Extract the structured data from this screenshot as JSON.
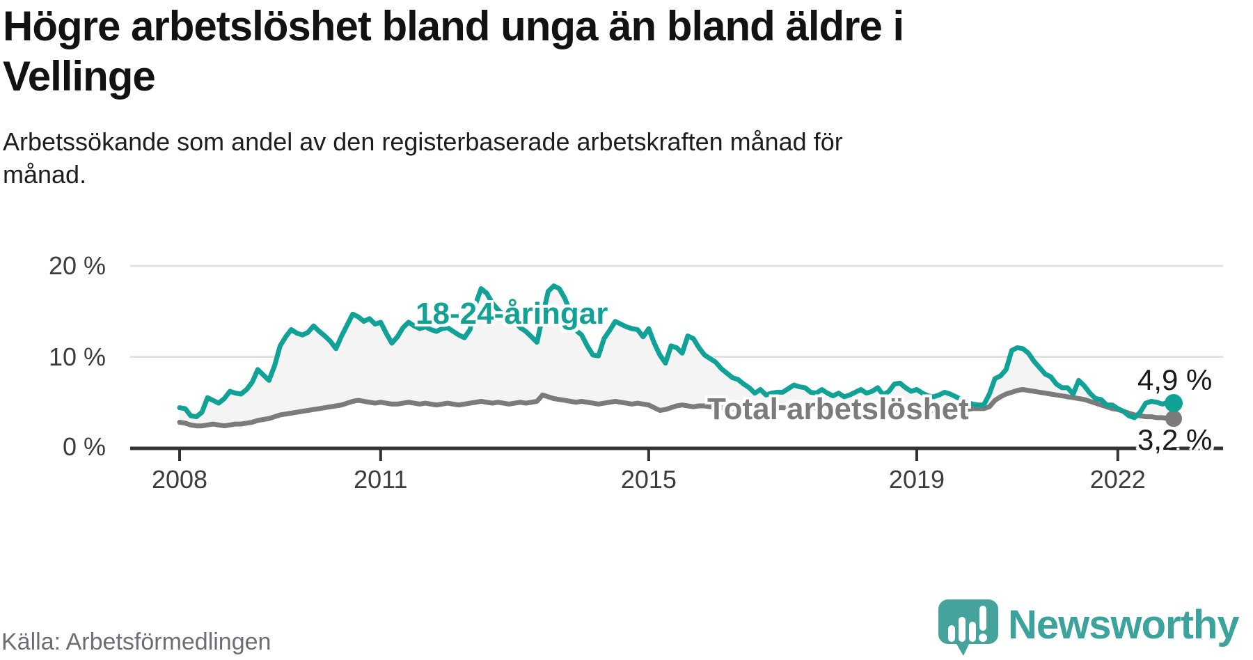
{
  "chart_data": {
    "type": "line",
    "title": "Högre arbetslöshet bland unga än bland äldre i Vellinge",
    "title_lines": [
      "Högre arbetslöshet bland unga än bland äldre i",
      "Vellinge"
    ],
    "subtitle": "Arbetssökande som andel av den registerbaserade arbetskraften månad för månad.",
    "subtitle_lines": [
      "Arbetssökande som andel av den registerbaserade arbetskraften månad för",
      "månad."
    ],
    "x_unit": "month",
    "x_start": "2008-01",
    "x_end": "2022-11",
    "x_axis": {
      "ticks": [
        {
          "label": "2008",
          "year": 2008
        },
        {
          "label": "2011",
          "year": 2011
        },
        {
          "label": "2015",
          "year": 2015
        },
        {
          "label": "2019",
          "year": 2019
        },
        {
          "label": "2022",
          "year": 2022
        }
      ]
    },
    "y_axis": {
      "unit": "%",
      "ticks": [
        {
          "label": "0 %",
          "value": 0
        },
        {
          "label": "10 %",
          "value": 10
        },
        {
          "label": "20 %",
          "value": 20
        }
      ],
      "ylim": [
        0,
        22
      ]
    },
    "band_fill_between_series": true,
    "colors": {
      "youth": "#10a296",
      "total": "#7b7b7b",
      "band": "#f4f4f4",
      "gridline": "#e2e2e2",
      "axis": "#333333"
    },
    "series": [
      {
        "name": "18-24-åringar",
        "label": "18-24-åringar",
        "end_label": "4,9 %",
        "end_value": 4.9,
        "color": "#10a296",
        "values": [
          4.4,
          4.3,
          3.5,
          3.4,
          3.9,
          5.5,
          5.2,
          4.9,
          5.4,
          6.2,
          6.0,
          5.9,
          6.4,
          7.2,
          8.6,
          8.0,
          7.4,
          9.0,
          11.2,
          12.2,
          13.0,
          12.6,
          12.4,
          12.7,
          13.4,
          12.8,
          12.3,
          11.7,
          10.9,
          12.3,
          13.5,
          14.7,
          14.4,
          13.9,
          14.2,
          13.6,
          13.8,
          12.6,
          11.5,
          12.2,
          13.2,
          13.8,
          13.4,
          13.1,
          13.3,
          13.0,
          12.8,
          13.1,
          13.2,
          12.8,
          12.4,
          12.1,
          13.0,
          15.8,
          17.5,
          17.0,
          15.9,
          15.2,
          14.6,
          14.0,
          13.9,
          13.2,
          12.8,
          12.2,
          11.6,
          14.5,
          17.2,
          17.8,
          17.5,
          16.4,
          14.8,
          12.9,
          12.4,
          11.2,
          10.2,
          10.1,
          12.0,
          12.9,
          13.9,
          13.6,
          13.3,
          13.1,
          13.0,
          12.2,
          13.1,
          11.5,
          10.2,
          9.3,
          11.2,
          11.0,
          10.4,
          12.3,
          12.0,
          11.0,
          10.2,
          9.8,
          9.4,
          8.7,
          8.2,
          7.7,
          7.5,
          7.0,
          6.6,
          6.0,
          6.4,
          5.8,
          6.0,
          6.1,
          6.1,
          6.5,
          6.9,
          6.7,
          6.6,
          6.1,
          6.0,
          6.4,
          6.0,
          5.7,
          6.0,
          5.6,
          5.8,
          6.1,
          6.4,
          6.0,
          6.2,
          6.6,
          5.8,
          6.2,
          7.0,
          7.1,
          6.6,
          6.2,
          6.4,
          6.0,
          5.7,
          5.6,
          5.8,
          6.1,
          5.9,
          5.6,
          5.3,
          5.0,
          4.8,
          4.7,
          4.7,
          5.9,
          7.6,
          7.9,
          8.6,
          10.7,
          11.0,
          10.9,
          10.4,
          9.5,
          8.8,
          8.1,
          7.8,
          7.0,
          6.6,
          6.6,
          5.9,
          7.4,
          6.8,
          6.0,
          5.4,
          5.3,
          4.7,
          4.7,
          4.3,
          4.0,
          3.5,
          3.3,
          3.9,
          4.9,
          5.1,
          5.0,
          4.8,
          5.0,
          4.9
        ]
      },
      {
        "name": "Total arbetslöshet",
        "label": "Total arbetslöshet",
        "end_label": "3,2 %",
        "end_value": 3.2,
        "color": "#7b7b7b",
        "values": [
          2.8,
          2.7,
          2.5,
          2.4,
          2.4,
          2.5,
          2.6,
          2.5,
          2.4,
          2.5,
          2.6,
          2.6,
          2.7,
          2.8,
          3.0,
          3.1,
          3.2,
          3.4,
          3.6,
          3.7,
          3.8,
          3.9,
          4.0,
          4.1,
          4.2,
          4.3,
          4.4,
          4.5,
          4.6,
          4.7,
          4.9,
          5.1,
          5.2,
          5.1,
          5.0,
          4.9,
          5.0,
          4.9,
          4.8,
          4.8,
          4.9,
          5.0,
          4.9,
          4.8,
          4.9,
          4.8,
          4.7,
          4.8,
          4.9,
          4.8,
          4.7,
          4.8,
          4.9,
          5.0,
          5.1,
          5.0,
          4.9,
          5.0,
          4.9,
          4.8,
          4.9,
          5.0,
          4.9,
          5.0,
          5.1,
          5.8,
          5.6,
          5.4,
          5.3,
          5.2,
          5.1,
          5.0,
          5.1,
          5.0,
          4.9,
          4.8,
          4.9,
          5.0,
          5.1,
          5.0,
          4.9,
          4.8,
          4.9,
          4.8,
          4.7,
          4.4,
          4.1,
          4.2,
          4.4,
          4.6,
          4.7,
          4.6,
          4.5,
          4.6,
          4.6,
          4.5,
          4.5,
          4.4,
          4.4,
          4.3,
          4.3,
          4.4,
          4.5,
          4.4,
          4.3,
          4.2,
          4.3,
          4.4,
          4.4,
          4.3,
          4.2,
          4.2,
          4.3,
          4.4,
          4.4,
          4.3,
          4.2,
          4.2,
          4.3,
          4.3,
          4.3,
          4.2,
          4.1,
          4.1,
          4.2,
          4.3,
          4.3,
          4.2,
          4.1,
          4.1,
          4.2,
          4.2,
          4.3,
          4.2,
          4.1,
          4.1,
          4.2,
          4.3,
          4.4,
          4.3,
          4.2,
          4.2,
          4.3,
          4.3,
          4.3,
          4.5,
          5.2,
          5.6,
          5.9,
          6.1,
          6.3,
          6.4,
          6.3,
          6.2,
          6.1,
          6.0,
          5.9,
          5.8,
          5.7,
          5.6,
          5.5,
          5.4,
          5.3,
          5.1,
          4.9,
          4.7,
          4.5,
          4.3,
          4.2,
          4.0,
          3.8,
          3.6,
          3.5,
          3.4,
          3.4,
          3.3,
          3.3,
          3.2,
          3.2
        ]
      }
    ]
  },
  "footer": {
    "source": "Källa: Arbetsförmedlingen",
    "logo_text": "Newsworthy"
  }
}
